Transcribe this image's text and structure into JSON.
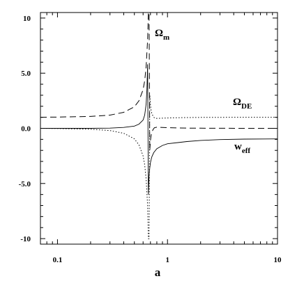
{
  "chart_data": {
    "type": "line",
    "title": "",
    "xlabel": "a",
    "ylabel": "",
    "xscale": "log",
    "xlim": [
      0.07,
      10
    ],
    "ylim": [
      -10.5,
      10.5
    ],
    "xticks": [
      {
        "value": 0.1,
        "label": "0.1"
      },
      {
        "value": 1,
        "label": "1"
      },
      {
        "value": 10,
        "label": "10"
      }
    ],
    "yticks": [
      {
        "value": 10,
        "label": "10"
      },
      {
        "value": 5,
        "label": "5.0"
      },
      {
        "value": 0,
        "label": "0.0"
      },
      {
        "value": -5,
        "label": "-5.0"
      },
      {
        "value": -10,
        "label": "-10"
      }
    ],
    "grid": false,
    "series": [
      {
        "name": "Ωm",
        "label_main": "Ω",
        "label_sub": "m",
        "style": "dashed",
        "x": [
          0.07,
          0.1,
          0.2,
          0.3,
          0.4,
          0.5,
          0.55,
          0.6,
          0.62,
          0.64,
          0.66,
          0.67,
          0.68,
          0.69,
          0.7,
          0.71,
          0.72,
          0.74,
          0.76,
          0.8,
          0.9,
          1,
          1.5,
          2,
          5,
          10
        ],
        "y": [
          1.0,
          1.02,
          1.08,
          1.2,
          1.45,
          1.95,
          2.5,
          3.5,
          4.3,
          5.6,
          8.0,
          10.5,
          10.5,
          -2.0,
          -1.1,
          -0.6,
          -0.35,
          -0.1,
          0.05,
          0.1,
          0.08,
          0.06,
          0.02,
          0.01,
          0.0,
          0.0
        ]
      },
      {
        "name": "ΩDE",
        "label_main": "Ω",
        "label_sub": "DE",
        "style": "dotted",
        "x": [
          0.07,
          0.1,
          0.2,
          0.3,
          0.4,
          0.5,
          0.55,
          0.6,
          0.62,
          0.64,
          0.66,
          0.67,
          0.68,
          0.69,
          0.7,
          0.71,
          0.72,
          0.74,
          0.76,
          0.8,
          0.9,
          1,
          1.5,
          2,
          5,
          10
        ],
        "y": [
          0.0,
          -0.02,
          -0.08,
          -0.2,
          -0.45,
          -0.95,
          -1.5,
          -2.5,
          -3.3,
          -4.6,
          -7.0,
          -10.0,
          -10.0,
          3.0,
          2.1,
          1.6,
          1.35,
          1.1,
          0.95,
          0.9,
          0.92,
          0.94,
          0.98,
          0.99,
          1.0,
          1.0
        ]
      },
      {
        "name": "weff",
        "label_main": "w",
        "label_sub": "eff",
        "style": "solid",
        "x": [
          0.07,
          0.1,
          0.2,
          0.3,
          0.4,
          0.5,
          0.55,
          0.6,
          0.62,
          0.64,
          0.65,
          0.66,
          0.67,
          0.68,
          0.69,
          0.7,
          0.72,
          0.75,
          0.8,
          0.9,
          1,
          1.5,
          2,
          3,
          5,
          10
        ],
        "y": [
          0.0,
          0.0,
          0.0,
          0.02,
          0.08,
          0.2,
          0.38,
          0.75,
          1.2,
          2.2,
          3.5,
          5.8,
          -6.0,
          -4.3,
          -3.6,
          -3.1,
          -2.6,
          -2.2,
          -1.85,
          -1.55,
          -1.4,
          -1.2,
          -1.1,
          -1.02,
          -0.98,
          -0.96
        ]
      }
    ]
  }
}
